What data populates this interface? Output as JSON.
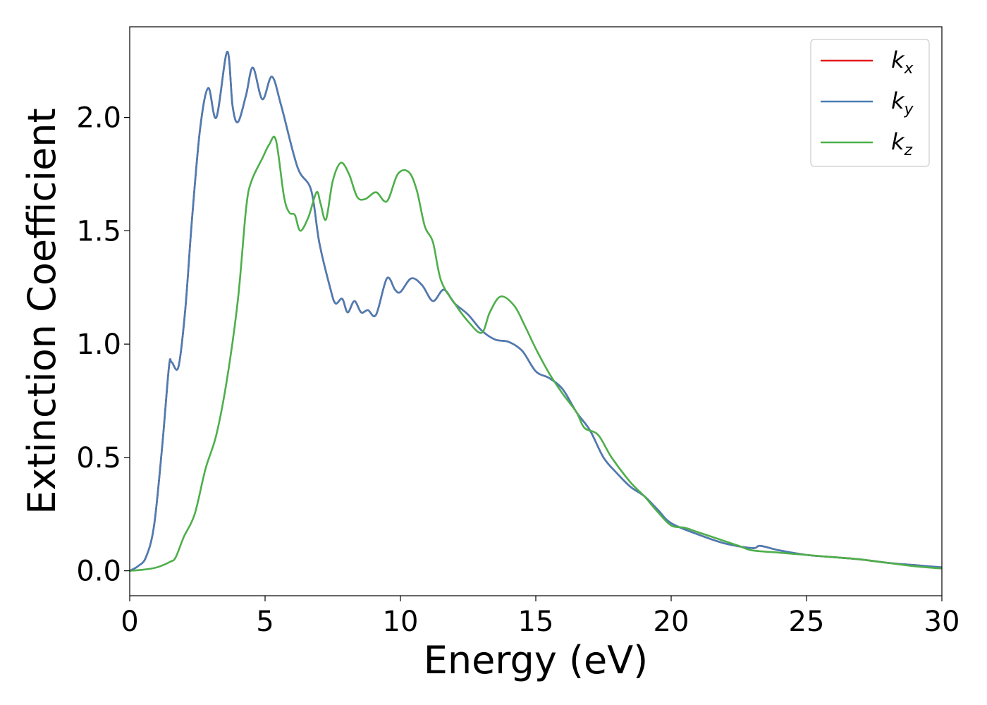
{
  "chart_data": {
    "type": "line",
    "xlabel": "Energy (eV)",
    "ylabel": "Extinction Coefficient",
    "xlim": [
      0,
      30
    ],
    "ylim": [
      -0.11,
      2.4
    ],
    "xticks": [
      "0",
      "5",
      "10",
      "15",
      "20",
      "25",
      "30"
    ],
    "yticks": [
      "0.0",
      "0.5",
      "1.0",
      "1.5",
      "2.0"
    ],
    "grid": false,
    "legend_position": "top-right",
    "series": [
      {
        "name": "k_x",
        "legend_base": "k",
        "legend_sub": "x",
        "color": "#e41a1c",
        "points": [
          [
            0,
            0
          ],
          [
            0.3,
            0.02
          ],
          [
            0.6,
            0.06
          ],
          [
            0.9,
            0.2
          ],
          [
            1.2,
            0.55
          ],
          [
            1.45,
            0.9
          ],
          [
            1.55,
            0.92
          ],
          [
            1.8,
            0.9
          ],
          [
            2.05,
            1.15
          ],
          [
            2.3,
            1.55
          ],
          [
            2.6,
            1.95
          ],
          [
            2.9,
            2.13
          ],
          [
            3.2,
            2.0
          ],
          [
            3.6,
            2.29
          ],
          [
            3.8,
            2.05
          ],
          [
            4.0,
            1.98
          ],
          [
            4.3,
            2.1
          ],
          [
            4.55,
            2.22
          ],
          [
            4.9,
            2.08
          ],
          [
            5.25,
            2.18
          ],
          [
            5.6,
            2.05
          ],
          [
            6.2,
            1.78
          ],
          [
            6.7,
            1.68
          ],
          [
            7.0,
            1.45
          ],
          [
            7.4,
            1.25
          ],
          [
            7.6,
            1.18
          ],
          [
            7.85,
            1.2
          ],
          [
            8.05,
            1.14
          ],
          [
            8.3,
            1.19
          ],
          [
            8.55,
            1.14
          ],
          [
            8.8,
            1.15
          ],
          [
            9.1,
            1.13
          ],
          [
            9.5,
            1.29
          ],
          [
            9.8,
            1.24
          ],
          [
            10.0,
            1.23
          ],
          [
            10.4,
            1.29
          ],
          [
            10.8,
            1.26
          ],
          [
            11.2,
            1.19
          ],
          [
            11.6,
            1.24
          ],
          [
            12.0,
            1.18
          ],
          [
            12.5,
            1.13
          ],
          [
            13.0,
            1.06
          ],
          [
            13.5,
            1.02
          ],
          [
            14.0,
            1.01
          ],
          [
            14.5,
            0.97
          ],
          [
            15.0,
            0.88
          ],
          [
            15.5,
            0.85
          ],
          [
            16.0,
            0.8
          ],
          [
            16.5,
            0.7
          ],
          [
            17.0,
            0.62
          ],
          [
            17.5,
            0.5
          ],
          [
            18.0,
            0.43
          ],
          [
            18.5,
            0.37
          ],
          [
            19.0,
            0.33
          ],
          [
            19.5,
            0.27
          ],
          [
            20.0,
            0.21
          ],
          [
            21.0,
            0.16
          ],
          [
            22.0,
            0.12
          ],
          [
            23.0,
            0.1
          ],
          [
            23.3,
            0.11
          ],
          [
            24.0,
            0.09
          ],
          [
            25.0,
            0.07
          ],
          [
            26.0,
            0.06
          ],
          [
            27.0,
            0.05
          ],
          [
            28.0,
            0.035
          ],
          [
            29.0,
            0.025
          ],
          [
            30.0,
            0.015
          ]
        ]
      },
      {
        "name": "k_y",
        "legend_base": "k",
        "legend_sub": "y",
        "color": "#4a7db5",
        "points": [
          [
            0,
            0
          ],
          [
            0.3,
            0.02
          ],
          [
            0.6,
            0.06
          ],
          [
            0.9,
            0.2
          ],
          [
            1.2,
            0.55
          ],
          [
            1.45,
            0.9
          ],
          [
            1.55,
            0.92
          ],
          [
            1.8,
            0.9
          ],
          [
            2.05,
            1.15
          ],
          [
            2.3,
            1.55
          ],
          [
            2.6,
            1.95
          ],
          [
            2.9,
            2.13
          ],
          [
            3.2,
            2.0
          ],
          [
            3.6,
            2.29
          ],
          [
            3.8,
            2.05
          ],
          [
            4.0,
            1.98
          ],
          [
            4.3,
            2.1
          ],
          [
            4.55,
            2.22
          ],
          [
            4.9,
            2.08
          ],
          [
            5.25,
            2.18
          ],
          [
            5.6,
            2.05
          ],
          [
            6.2,
            1.78
          ],
          [
            6.7,
            1.68
          ],
          [
            7.0,
            1.45
          ],
          [
            7.4,
            1.25
          ],
          [
            7.6,
            1.18
          ],
          [
            7.85,
            1.2
          ],
          [
            8.05,
            1.14
          ],
          [
            8.3,
            1.19
          ],
          [
            8.55,
            1.14
          ],
          [
            8.8,
            1.15
          ],
          [
            9.1,
            1.13
          ],
          [
            9.5,
            1.29
          ],
          [
            9.8,
            1.24
          ],
          [
            10.0,
            1.23
          ],
          [
            10.4,
            1.29
          ],
          [
            10.8,
            1.26
          ],
          [
            11.2,
            1.19
          ],
          [
            11.6,
            1.24
          ],
          [
            12.0,
            1.18
          ],
          [
            12.5,
            1.13
          ],
          [
            13.0,
            1.06
          ],
          [
            13.5,
            1.02
          ],
          [
            14.0,
            1.01
          ],
          [
            14.5,
            0.97
          ],
          [
            15.0,
            0.88
          ],
          [
            15.5,
            0.85
          ],
          [
            16.0,
            0.8
          ],
          [
            16.5,
            0.7
          ],
          [
            17.0,
            0.62
          ],
          [
            17.5,
            0.5
          ],
          [
            18.0,
            0.43
          ],
          [
            18.5,
            0.37
          ],
          [
            19.0,
            0.33
          ],
          [
            19.5,
            0.27
          ],
          [
            20.0,
            0.21
          ],
          [
            21.0,
            0.16
          ],
          [
            22.0,
            0.12
          ],
          [
            23.0,
            0.1
          ],
          [
            23.3,
            0.11
          ],
          [
            24.0,
            0.09
          ],
          [
            25.0,
            0.07
          ],
          [
            26.0,
            0.06
          ],
          [
            27.0,
            0.05
          ],
          [
            28.0,
            0.035
          ],
          [
            29.0,
            0.025
          ],
          [
            30.0,
            0.015
          ]
        ]
      },
      {
        "name": "k_z",
        "legend_base": "k",
        "legend_sub": "z",
        "color": "#4daf4a",
        "points": [
          [
            0,
            0
          ],
          [
            0.5,
            0.005
          ],
          [
            1.0,
            0.015
          ],
          [
            1.5,
            0.04
          ],
          [
            1.7,
            0.06
          ],
          [
            2.0,
            0.15
          ],
          [
            2.4,
            0.25
          ],
          [
            2.8,
            0.45
          ],
          [
            3.2,
            0.6
          ],
          [
            3.6,
            0.85
          ],
          [
            4.0,
            1.2
          ],
          [
            4.3,
            1.6
          ],
          [
            4.5,
            1.72
          ],
          [
            4.9,
            1.82
          ],
          [
            5.15,
            1.88
          ],
          [
            5.4,
            1.9
          ],
          [
            5.7,
            1.65
          ],
          [
            5.9,
            1.58
          ],
          [
            6.1,
            1.57
          ],
          [
            6.3,
            1.5
          ],
          [
            6.6,
            1.56
          ],
          [
            6.9,
            1.67
          ],
          [
            7.05,
            1.62
          ],
          [
            7.25,
            1.55
          ],
          [
            7.5,
            1.72
          ],
          [
            7.8,
            1.8
          ],
          [
            8.1,
            1.75
          ],
          [
            8.4,
            1.65
          ],
          [
            8.7,
            1.64
          ],
          [
            9.1,
            1.67
          ],
          [
            9.5,
            1.63
          ],
          [
            9.9,
            1.75
          ],
          [
            10.3,
            1.76
          ],
          [
            10.6,
            1.68
          ],
          [
            10.9,
            1.52
          ],
          [
            11.2,
            1.45
          ],
          [
            11.5,
            1.28
          ],
          [
            12.0,
            1.18
          ],
          [
            12.5,
            1.1
          ],
          [
            13.0,
            1.05
          ],
          [
            13.3,
            1.14
          ],
          [
            13.7,
            1.21
          ],
          [
            14.2,
            1.17
          ],
          [
            14.6,
            1.08
          ],
          [
            15.0,
            0.98
          ],
          [
            15.5,
            0.87
          ],
          [
            16.0,
            0.78
          ],
          [
            16.5,
            0.7
          ],
          [
            16.8,
            0.63
          ],
          [
            17.3,
            0.6
          ],
          [
            17.8,
            0.5
          ],
          [
            18.5,
            0.39
          ],
          [
            19.0,
            0.33
          ],
          [
            19.5,
            0.26
          ],
          [
            20.0,
            0.2
          ],
          [
            20.5,
            0.19
          ],
          [
            21.0,
            0.17
          ],
          [
            22.0,
            0.13
          ],
          [
            22.5,
            0.11
          ],
          [
            23.0,
            0.09
          ],
          [
            24.0,
            0.08
          ],
          [
            25.0,
            0.07
          ],
          [
            26.0,
            0.06
          ],
          [
            27.0,
            0.05
          ],
          [
            28.0,
            0.035
          ],
          [
            29.0,
            0.02
          ],
          [
            30.0,
            0.01
          ]
        ]
      }
    ]
  }
}
